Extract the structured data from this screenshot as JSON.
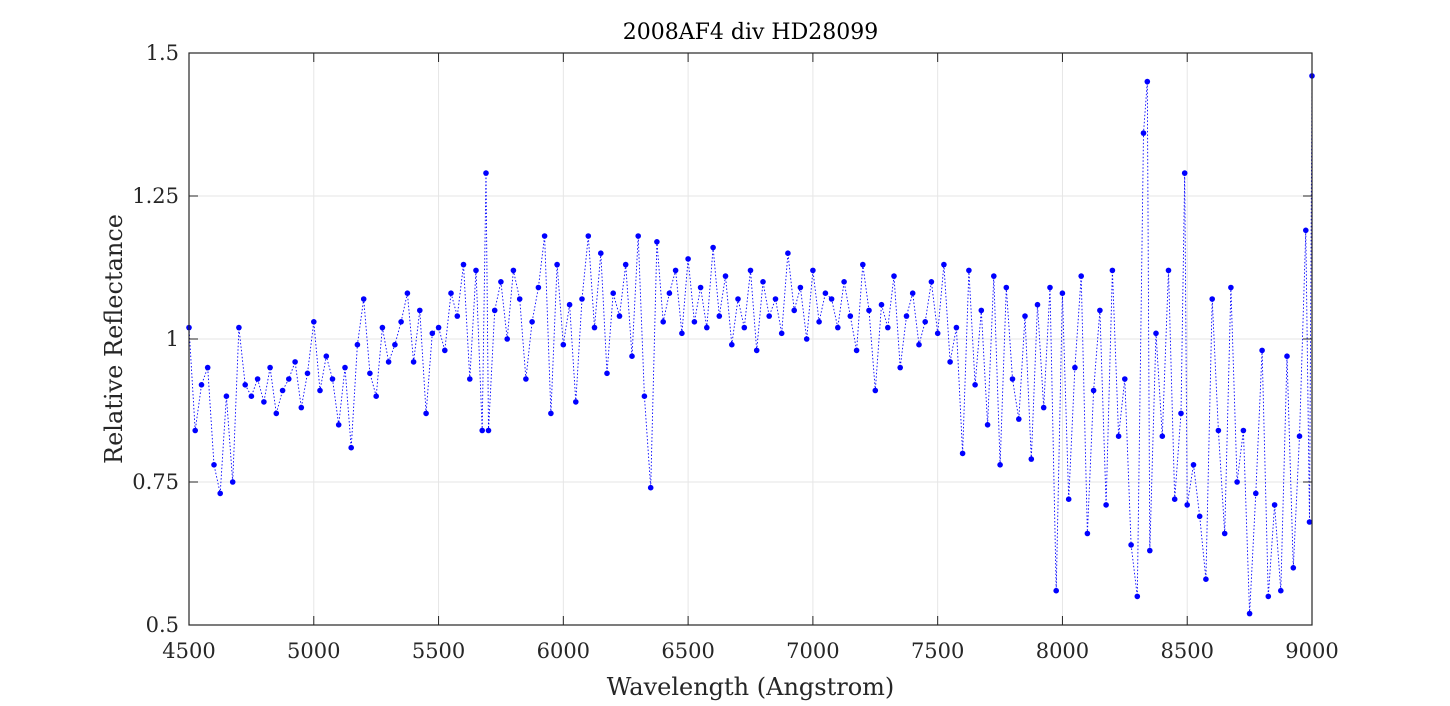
{
  "chart_data": {
    "type": "scatter",
    "title": "2008AF4 div HD28099",
    "xlabel": "Wavelength (Angstrom)",
    "ylabel": "Relative Reflectance",
    "xlim": [
      4500,
      9000
    ],
    "ylim": [
      0.5,
      1.5
    ],
    "xticks": [
      4500,
      5000,
      5500,
      6000,
      6500,
      7000,
      7500,
      8000,
      8500,
      9000
    ],
    "yticks": [
      0.5,
      0.75,
      1,
      1.25,
      1.5
    ],
    "xtick_labels": [
      "4500",
      "5000",
      "5500",
      "6000",
      "6500",
      "7000",
      "7500",
      "8000",
      "8500",
      "9000"
    ],
    "ytick_labels": [
      "0.5",
      "0.75",
      "1",
      "1.25",
      "1.5"
    ],
    "grid": true,
    "legend": "none",
    "marker": "filled circle",
    "line_style": "dotted",
    "series_color": "#0000ff",
    "series": [
      {
        "x": [
          4500,
          4525,
          4550,
          4575,
          4600,
          4625,
          4650,
          4675,
          4700,
          4725,
          4750,
          4775,
          4800,
          4825,
          4850,
          4875,
          4900,
          4925,
          4950,
          4975,
          5000,
          5025,
          5050,
          5075,
          5100,
          5125,
          5150,
          5175,
          5200,
          5225,
          5250,
          5275,
          5300,
          5325,
          5350,
          5375,
          5400,
          5425,
          5450,
          5475,
          5500,
          5525,
          5550,
          5575,
          5600,
          5625,
          5650,
          5675,
          5690,
          5700,
          5725,
          5750,
          5775,
          5800,
          5825,
          5850,
          5875,
          5900,
          5925,
          5950,
          5975,
          6000,
          6025,
          6050,
          6075,
          6100,
          6125,
          6150,
          6175,
          6200,
          6225,
          6250,
          6275,
          6300,
          6325,
          6350,
          6375,
          6400,
          6425,
          6450,
          6475,
          6500,
          6525,
          6550,
          6575,
          6600,
          6625,
          6650,
          6675,
          6700,
          6725,
          6750,
          6775,
          6800,
          6825,
          6850,
          6875,
          6900,
          6925,
          6950,
          6975,
          7000,
          7025,
          7050,
          7075,
          7100,
          7125,
          7150,
          7175,
          7200,
          7225,
          7250,
          7275,
          7300,
          7325,
          7350,
          7375,
          7400,
          7425,
          7450,
          7475,
          7500,
          7525,
          7550,
          7575,
          7600,
          7625,
          7650,
          7675,
          7700,
          7725,
          7750,
          7775,
          7800,
          7825,
          7850,
          7875,
          7900,
          7925,
          7950,
          7975,
          8000,
          8025,
          8050,
          8075,
          8100,
          8125,
          8150,
          8175,
          8200,
          8225,
          8250,
          8275,
          8300,
          8325,
          8340,
          8350,
          8375,
          8400,
          8425,
          8450,
          8475,
          8490,
          8500,
          8525,
          8550,
          8575,
          8600,
          8625,
          8650,
          8675,
          8700,
          8725,
          8750,
          8775,
          8800,
          8825,
          8850,
          8875,
          8900,
          8925,
          8950,
          8975,
          8990,
          9000
        ],
        "y": [
          1.02,
          0.84,
          0.92,
          0.95,
          0.78,
          0.73,
          0.9,
          0.75,
          1.02,
          0.92,
          0.9,
          0.93,
          0.89,
          0.95,
          0.87,
          0.91,
          0.93,
          0.96,
          0.88,
          0.94,
          1.03,
          0.91,
          0.97,
          0.93,
          0.85,
          0.95,
          0.81,
          0.99,
          1.07,
          0.94,
          0.9,
          1.02,
          0.96,
          0.99,
          1.03,
          1.08,
          0.96,
          1.05,
          0.87,
          1.01,
          1.02,
          0.98,
          1.08,
          1.04,
          1.13,
          0.93,
          1.12,
          0.84,
          1.29,
          0.84,
          1.05,
          1.1,
          1.0,
          1.12,
          1.07,
          0.93,
          1.03,
          1.09,
          1.18,
          0.87,
          1.13,
          0.99,
          1.06,
          0.89,
          1.07,
          1.18,
          1.02,
          1.15,
          0.94,
          1.08,
          1.04,
          1.13,
          0.97,
          1.18,
          0.9,
          0.74,
          1.17,
          1.03,
          1.08,
          1.12,
          1.01,
          1.14,
          1.03,
          1.09,
          1.02,
          1.16,
          1.04,
          1.11,
          0.99,
          1.07,
          1.02,
          1.12,
          0.98,
          1.1,
          1.04,
          1.07,
          1.01,
          1.15,
          1.05,
          1.09,
          1.0,
          1.12,
          1.03,
          1.08,
          1.07,
          1.02,
          1.1,
          1.04,
          0.98,
          1.13,
          1.05,
          0.91,
          1.06,
          1.02,
          1.11,
          0.95,
          1.04,
          1.08,
          0.99,
          1.03,
          1.1,
          1.01,
          1.13,
          0.96,
          1.02,
          0.8,
          1.12,
          0.92,
          1.05,
          0.85,
          1.11,
          0.78,
          1.09,
          0.93,
          0.86,
          1.04,
          0.79,
          1.06,
          0.88,
          1.09,
          0.56,
          1.08,
          0.72,
          0.95,
          1.11,
          0.66,
          0.91,
          1.05,
          0.71,
          1.12,
          0.83,
          0.93,
          0.64,
          0.55,
          1.36,
          1.45,
          0.63,
          1.01,
          0.83,
          1.12,
          0.72,
          0.87,
          1.29,
          0.71,
          0.78,
          0.69,
          0.58,
          1.07,
          0.84,
          0.66,
          1.09,
          0.75,
          0.84,
          0.52,
          0.73,
          0.98,
          0.55,
          0.71,
          0.56,
          0.97,
          0.6,
          0.83,
          1.19,
          0.68,
          1.46
        ]
      }
    ]
  }
}
